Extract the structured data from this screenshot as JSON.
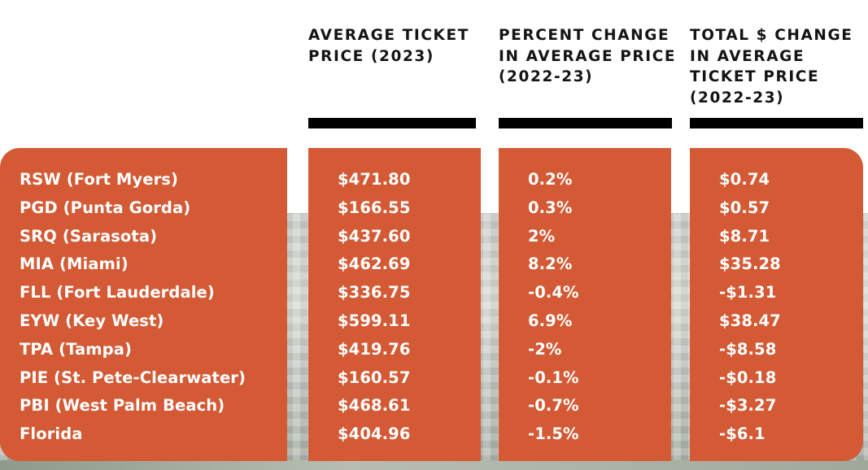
{
  "chart_data": {
    "type": "table",
    "columns": [
      "",
      "AVERAGE TICKET\nPRICE (2023)",
      "PERCENT CHANGE\nIN AVERAGE PRICE\n(2022-23)",
      "TOTAL $ CHANGE\nIN AVERAGE\nTICKET PRICE\n(2022-23)"
    ],
    "rows": [
      {
        "label": "RSW (Fort Myers)",
        "price": "$471.80",
        "pct": "0.2%",
        "change": "$0.74"
      },
      {
        "label": "PGD (Punta Gorda)",
        "price": "$166.55",
        "pct": "0.3%",
        "change": "$0.57"
      },
      {
        "label": "SRQ (Sarasota)",
        "price": "$437.60",
        "pct": "2%",
        "change": "$8.71"
      },
      {
        "label": "MIA (Miami)",
        "price": "$462.69",
        "pct": "8.2%",
        "change": "$35.28"
      },
      {
        "label": "FLL (Fort Lauderdale)",
        "price": "$336.75",
        "pct": "-0.4%",
        "change": "-$1.31"
      },
      {
        "label": "EYW (Key West)",
        "price": "$599.11",
        "pct": "6.9%",
        "change": "$38.47"
      },
      {
        "label": "TPA (Tampa)",
        "price": "$419.76",
        "pct": "-2%",
        "change": "-$8.58"
      },
      {
        "label": "PIE (St. Pete-Clearwater)",
        "price": "$160.57",
        "pct": "-0.1%",
        "change": "-$0.18"
      },
      {
        "label": "PBI (West Palm Beach)",
        "price": "$468.61",
        "pct": "-0.7%",
        "change": "-$3.27"
      },
      {
        "label": "Florida",
        "price": "$404.96",
        "pct": "-1.5%",
        "change": "-$6.1"
      }
    ]
  },
  "colors": {
    "panel": "#d35a35",
    "header_text": "#141414",
    "cell_text": "#ffffff",
    "rule": "#000000"
  }
}
